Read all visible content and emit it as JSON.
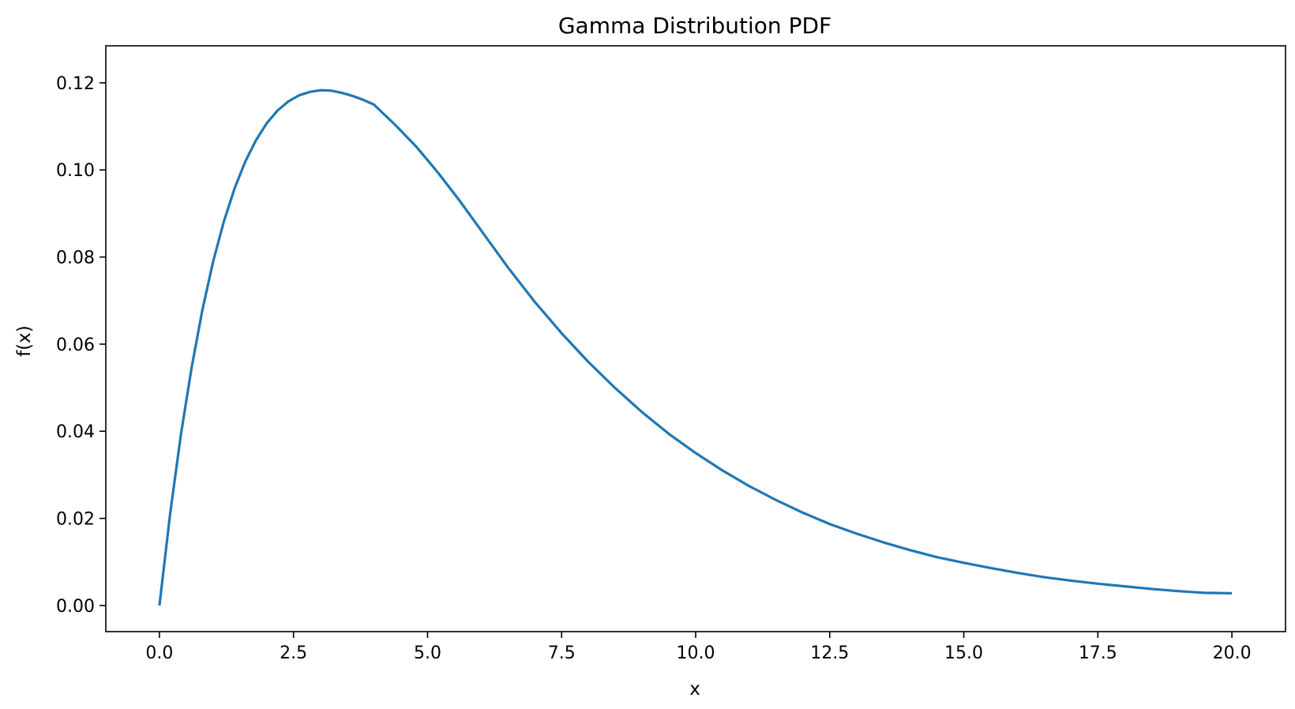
{
  "chart_data": {
    "type": "line",
    "title": "Gamma Distribution PDF",
    "xlabel": "x",
    "ylabel": "f(x)",
    "xlim": [
      -1.0,
      21.0
    ],
    "ylim": [
      -0.006,
      0.1285
    ],
    "xticks": [
      0.0,
      2.5,
      5.0,
      7.5,
      10.0,
      12.5,
      15.0,
      17.5,
      20.0
    ],
    "xtick_labels": [
      "0.0",
      "2.5",
      "5.0",
      "7.5",
      "10.0",
      "12.5",
      "15.0",
      "17.5",
      "20.0"
    ],
    "yticks": [
      0.0,
      0.02,
      0.04,
      0.06,
      0.08,
      0.1,
      0.12
    ],
    "ytick_labels": [
      "0.00",
      "0.02",
      "0.04",
      "0.06",
      "0.08",
      "0.10",
      "0.12"
    ],
    "grid": false,
    "legend": false,
    "line_color": "#1f77b4",
    "series": [
      {
        "x": [
          0.0,
          0.2,
          0.4,
          0.6,
          0.8,
          1.0,
          1.2,
          1.4,
          1.6,
          1.8,
          2.0,
          2.2,
          2.4,
          2.6,
          2.8,
          3.0,
          3.2,
          3.4,
          3.6,
          3.8,
          4.0,
          4.4,
          4.8,
          5.2,
          5.6,
          6.0,
          6.5,
          7.0,
          7.5,
          8.0,
          8.5,
          9.0,
          9.5,
          10.0,
          10.5,
          11.0,
          11.5,
          12.0,
          12.5,
          13.0,
          13.5,
          14.0,
          14.5,
          15.0,
          15.5,
          16.0,
          16.5,
          17.0,
          17.5,
          18.0,
          18.5,
          19.0,
          19.5,
          20.0
        ],
        "y": [
          0.0,
          0.0211,
          0.0392,
          0.0546,
          0.0678,
          0.0789,
          0.0881,
          0.0957,
          0.1019,
          0.1068,
          0.1107,
          0.1136,
          0.1157,
          0.1171,
          0.1179,
          0.1183,
          0.1182,
          0.1177,
          0.117,
          0.1161,
          0.115,
          0.1103,
          0.1052,
          0.0993,
          0.0929,
          0.0861,
          0.0776,
          0.0697,
          0.0625,
          0.0559,
          0.0499,
          0.0444,
          0.0394,
          0.035,
          0.031,
          0.0274,
          0.0242,
          0.0213,
          0.0187,
          0.0165,
          0.0145,
          0.0127,
          0.0111,
          0.0098,
          0.0086,
          0.0075,
          0.0065,
          0.0057,
          0.005,
          0.0044,
          0.0038,
          0.0033,
          0.0029,
          0.0028
        ]
      }
    ]
  }
}
